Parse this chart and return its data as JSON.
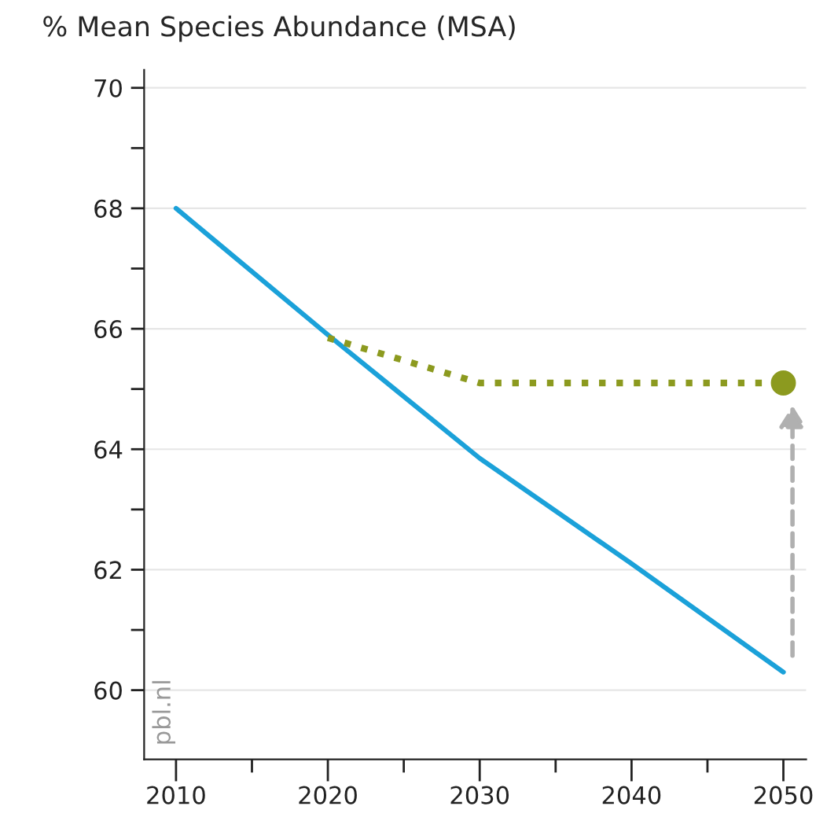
{
  "chart_data": {
    "type": "line",
    "ylabel": "% Mean Species Abundance (MSA)",
    "x": [
      2010,
      2020,
      2030,
      2040,
      2050
    ],
    "xlim": [
      2007.9,
      2051.5
    ],
    "xticks": [
      2010,
      {
        "value": 2015,
        "label": null
      },
      2020,
      {
        "value": 2025,
        "label": null
      },
      2030,
      {
        "value": 2035,
        "label": null
      },
      2040,
      {
        "value": 2045,
        "label": null
      },
      2050
    ],
    "ylim": [
      58.85,
      70.3
    ],
    "yticks": [
      60,
      {
        "value": 61,
        "label": null
      },
      62,
      {
        "value": 63,
        "label": null
      },
      64,
      {
        "value": 65,
        "label": null
      },
      66,
      {
        "value": 67,
        "label": null
      },
      68,
      {
        "value": 69,
        "label": null
      },
      70
    ],
    "grid": "y",
    "marker": "none",
    "series": [
      {
        "color": "#1ba1d9",
        "values": [
          68.0,
          65.9,
          63.85,
          62.1,
          60.3
        ],
        "line_style": "solid"
      },
      {
        "color": "#8c9a1f",
        "values": [
          null,
          65.85,
          65.1,
          65.1,
          65.1
        ],
        "line_style": "dotted"
      },
      {
        "type": "scatter",
        "color": "#8c9a1f",
        "x": [
          2050
        ],
        "values": [
          65.1
        ],
        "marker": "circle"
      }
    ],
    "annotations": [
      "pbl.nl"
    ]
  }
}
